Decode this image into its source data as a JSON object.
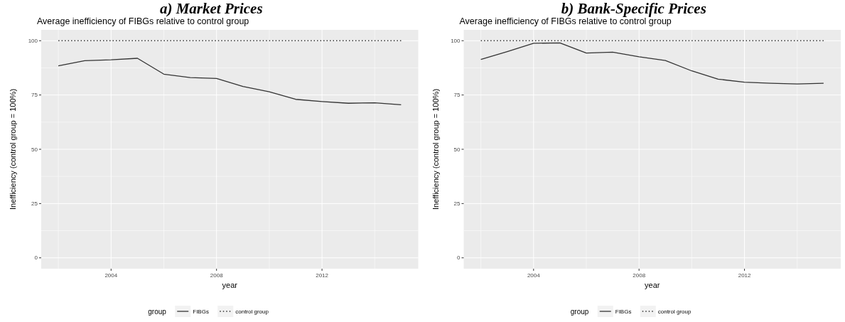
{
  "chart_data": [
    {
      "type": "line",
      "title": "a) Market Prices",
      "subtitle": "Average inefficiency of FIBGs relative to control group",
      "xlabel": "year",
      "ylabel": "Inefficiency (control group = 100%)",
      "legend_title": "group",
      "legend": "bottom",
      "grid": true,
      "x": [
        2002,
        2003,
        2004,
        2005,
        2006,
        2007,
        2008,
        2009,
        2010,
        2011,
        2012,
        2013,
        2014,
        2015
      ],
      "xlim": [
        2001.35,
        2015.65
      ],
      "xticks": [
        2004,
        2008,
        2012
      ],
      "ylim": [
        -5,
        105
      ],
      "yticks": [
        0,
        25,
        50,
        75,
        100
      ],
      "series": [
        {
          "name": "FIBGs",
          "color": "#333333",
          "line_style": "solid",
          "values": [
            88.4,
            90.8,
            91.2,
            91.9,
            84.6,
            83.0,
            82.6,
            78.9,
            76.5,
            73.0,
            72.0,
            71.2,
            71.4,
            70.5
          ]
        },
        {
          "name": "control group",
          "color": "#333333",
          "line_style": "dotted",
          "values": [
            100,
            100,
            100,
            100,
            100,
            100,
            100,
            100,
            100,
            100,
            100,
            100,
            100,
            100
          ]
        }
      ]
    },
    {
      "type": "line",
      "title": "b) Bank-Specific Prices",
      "subtitle": "Average inefficiency of FIBGs relative to control group",
      "xlabel": "year",
      "ylabel": "Inefficiency (control group = 100%)",
      "legend_title": "group",
      "legend": "bottom",
      "grid": true,
      "x": [
        2002,
        2003,
        2004,
        2005,
        2006,
        2007,
        2008,
        2009,
        2010,
        2011,
        2012,
        2013,
        2014,
        2015
      ],
      "xlim": [
        2001.35,
        2015.65
      ],
      "xticks": [
        2004,
        2008,
        2012
      ],
      "ylim": [
        -5,
        105
      ],
      "yticks": [
        0,
        25,
        50,
        75,
        100
      ],
      "series": [
        {
          "name": "FIBGs",
          "color": "#333333",
          "line_style": "solid",
          "values": [
            91.4,
            95.0,
            98.8,
            99.0,
            94.3,
            94.7,
            92.6,
            90.9,
            86.1,
            82.3,
            80.9,
            80.4,
            80.1,
            80.4
          ]
        },
        {
          "name": "control group",
          "color": "#333333",
          "line_style": "dotted",
          "values": [
            100,
            100,
            100,
            100,
            100,
            100,
            100,
            100,
            100,
            100,
            100,
            100,
            100,
            100
          ]
        }
      ]
    }
  ]
}
